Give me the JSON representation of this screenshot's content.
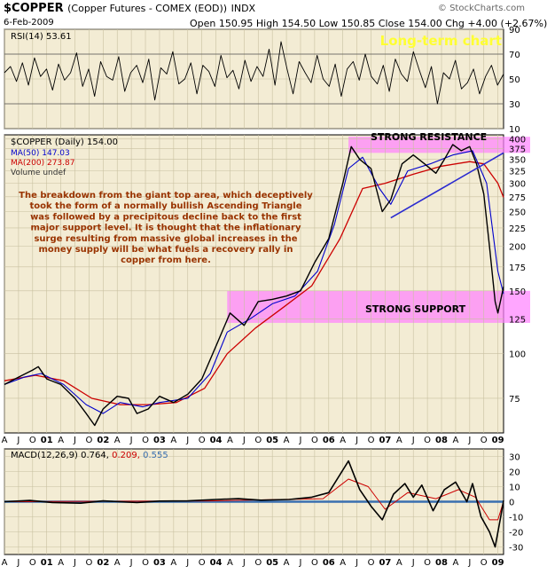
{
  "header": {
    "symbol": "$COPPER",
    "name": "(Copper Futures - COMEX (EOD))",
    "exchange": "INDX",
    "date": "6-Feb-2009",
    "quote": "Open 150.95  High 154.50  Low 150.85  Close 154.00  Chg +4.00 (+2.67%)",
    "watermark": "© StockCharts.com"
  },
  "colors": {
    "panel_bg": "#f3ecd4",
    "grid": "#c8c0a0",
    "price": "#000000",
    "ma50": "#0000cc",
    "ma200": "#cc0000",
    "zone": "#ff80ff",
    "annotation": "#993300",
    "title_badge": "#ffff33",
    "trendline": "#2a2ad0",
    "macd_hist": "#3a6fb0"
  },
  "chart_data": [
    {
      "type": "line",
      "panel": "rsi",
      "legend": "RSI(14) 53.61",
      "ylim": [
        10,
        90
      ],
      "yticks": [
        10,
        30,
        50,
        70,
        90
      ],
      "guides": [
        30,
        70
      ],
      "badge": "Long-term chart",
      "values": [
        55,
        60,
        48,
        63,
        45,
        67,
        52,
        58,
        41,
        62,
        49,
        55,
        71,
        44,
        58,
        36,
        64,
        52,
        49,
        68,
        40,
        55,
        61,
        47,
        66,
        33,
        59,
        54,
        72,
        46,
        50,
        63,
        38,
        61,
        56,
        44,
        69,
        51,
        57,
        42,
        65,
        48,
        60,
        52,
        74,
        45,
        80,
        58,
        38,
        64,
        55,
        47,
        69,
        50,
        44,
        62,
        36,
        58,
        64,
        49,
        70,
        52,
        46,
        61,
        40,
        66,
        54,
        48,
        72,
        57,
        43,
        60,
        30,
        55,
        50,
        65,
        42,
        47,
        58,
        38,
        52,
        61,
        45,
        54
      ]
    },
    {
      "type": "line",
      "panel": "price",
      "title": "$COPPER (Daily) 154.00",
      "legend": [
        "MA(50) 147.03",
        "MA(200) 273.87",
        "Volume undef"
      ],
      "scale": "log",
      "ylim": [
        60,
        410
      ],
      "yticks": [
        75,
        100,
        125,
        150,
        175,
        200,
        225,
        250,
        275,
        300,
        325,
        350,
        375,
        400
      ],
      "x_ticks": [
        "A",
        "J",
        "O",
        "01",
        "A",
        "J",
        "O",
        "02",
        "A",
        "J",
        "O",
        "03",
        "A",
        "J",
        "O",
        "04",
        "A",
        "J",
        "O",
        "05",
        "A",
        "J",
        "O",
        "06",
        "A",
        "J",
        "O",
        "07",
        "A",
        "J",
        "O",
        "08",
        "A",
        "J",
        "O",
        "09"
      ],
      "x_start_year": 2000.25,
      "x_end_year": 2009.1,
      "price_points": [
        [
          2000.25,
          82
        ],
        [
          2000.5,
          86
        ],
        [
          2000.75,
          90
        ],
        [
          2000.85,
          92
        ],
        [
          2001.0,
          85
        ],
        [
          2001.25,
          82
        ],
        [
          2001.5,
          75
        ],
        [
          2001.7,
          68
        ],
        [
          2001.85,
          63
        ],
        [
          2002.0,
          70
        ],
        [
          2002.25,
          76
        ],
        [
          2002.45,
          75
        ],
        [
          2002.6,
          68
        ],
        [
          2002.8,
          70
        ],
        [
          2003.0,
          76
        ],
        [
          2003.25,
          73
        ],
        [
          2003.5,
          77
        ],
        [
          2003.75,
          85
        ],
        [
          2004.0,
          105
        ],
        [
          2004.25,
          130
        ],
        [
          2004.5,
          120
        ],
        [
          2004.75,
          140
        ],
        [
          2005.0,
          142
        ],
        [
          2005.25,
          145
        ],
        [
          2005.5,
          150
        ],
        [
          2005.75,
          180
        ],
        [
          2006.0,
          210
        ],
        [
          2006.25,
          300
        ],
        [
          2006.4,
          380
        ],
        [
          2006.55,
          350
        ],
        [
          2006.75,
          330
        ],
        [
          2006.95,
          250
        ],
        [
          2007.1,
          270
        ],
        [
          2007.3,
          340
        ],
        [
          2007.5,
          360
        ],
        [
          2007.7,
          340
        ],
        [
          2007.9,
          320
        ],
        [
          2008.05,
          350
        ],
        [
          2008.2,
          385
        ],
        [
          2008.35,
          370
        ],
        [
          2008.5,
          380
        ],
        [
          2008.62,
          340
        ],
        [
          2008.75,
          280
        ],
        [
          2008.85,
          200
        ],
        [
          2008.95,
          140
        ],
        [
          2009.0,
          130
        ],
        [
          2009.1,
          154
        ]
      ],
      "ma50_points": [
        [
          2000.25,
          82
        ],
        [
          2000.6,
          86
        ],
        [
          2000.9,
          88
        ],
        [
          2001.3,
          82
        ],
        [
          2001.7,
          72
        ],
        [
          2002.0,
          68
        ],
        [
          2002.3,
          73
        ],
        [
          2002.7,
          71
        ],
        [
          2003.0,
          73
        ],
        [
          2003.5,
          75
        ],
        [
          2003.9,
          88
        ],
        [
          2004.2,
          115
        ],
        [
          2004.6,
          125
        ],
        [
          2005.0,
          138
        ],
        [
          2005.4,
          145
        ],
        [
          2005.8,
          170
        ],
        [
          2006.1,
          230
        ],
        [
          2006.35,
          330
        ],
        [
          2006.6,
          355
        ],
        [
          2006.9,
          290
        ],
        [
          2007.1,
          262
        ],
        [
          2007.4,
          325
        ],
        [
          2007.8,
          340
        ],
        [
          2008.2,
          360
        ],
        [
          2008.55,
          370
        ],
        [
          2008.8,
          300
        ],
        [
          2009.0,
          170
        ],
        [
          2009.1,
          147
        ]
      ],
      "ma200_points": [
        [
          2000.25,
          84
        ],
        [
          2000.8,
          87
        ],
        [
          2001.3,
          84
        ],
        [
          2001.8,
          75
        ],
        [
          2002.3,
          72
        ],
        [
          2002.8,
          72
        ],
        [
          2003.3,
          73
        ],
        [
          2003.8,
          80
        ],
        [
          2004.2,
          100
        ],
        [
          2004.7,
          118
        ],
        [
          2005.2,
          135
        ],
        [
          2005.7,
          155
        ],
        [
          2006.2,
          210
        ],
        [
          2006.6,
          290
        ],
        [
          2007.0,
          300
        ],
        [
          2007.5,
          318
        ],
        [
          2008.0,
          335
        ],
        [
          2008.5,
          345
        ],
        [
          2008.75,
          340
        ],
        [
          2009.0,
          300
        ],
        [
          2009.1,
          274
        ]
      ],
      "resistance_zone": [
        365,
        405
      ],
      "resistance_zone_start": 2006.35,
      "support_zone": [
        122,
        150
      ],
      "support_zone_start": 2004.2,
      "trendline": [
        [
          2007.1,
          240
        ],
        [
          2009.1,
          365
        ]
      ],
      "annotations": {
        "resistance": "STRONG RESISTANCE",
        "support": "STRONG SUPPORT",
        "commentary": [
          "The breakdown from the giant top area, which deceptively",
          "took the form of a normally bullish Ascending Triangle",
          "was followed by a precipitous decline back to the first",
          "major support level. It is thought that the inflationary",
          "surge resulting from massive global increases in the",
          "money supply will be what fuels a recovery rally in",
          "copper from here."
        ]
      }
    },
    {
      "type": "line",
      "panel": "macd",
      "legend": [
        "MACD(12,26,9)",
        "0.764,",
        "0.209,",
        "0.555"
      ],
      "ylim": [
        -35,
        35
      ],
      "yticks": [
        -30,
        -20,
        -10,
        0,
        10,
        20,
        30
      ],
      "x_ticks": [
        "A",
        "J",
        "O",
        "01",
        "A",
        "J",
        "O",
        "02",
        "A",
        "J",
        "O",
        "03",
        "A",
        "J",
        "O",
        "04",
        "A",
        "J",
        "O",
        "05",
        "A",
        "J",
        "O",
        "06",
        "A",
        "J",
        "O",
        "07",
        "A",
        "J",
        "O",
        "08",
        "A",
        "J",
        "O",
        "09"
      ],
      "macd_points": [
        [
          2000.25,
          0
        ],
        [
          2000.7,
          0.8
        ],
        [
          2001.1,
          -0.5
        ],
        [
          2001.6,
          -1
        ],
        [
          2002.0,
          0.5
        ],
        [
          2002.6,
          -0.6
        ],
        [
          2003.0,
          0.4
        ],
        [
          2003.5,
          0.5
        ],
        [
          2004.0,
          1.5
        ],
        [
          2004.4,
          2
        ],
        [
          2004.8,
          1
        ],
        [
          2005.3,
          1.5
        ],
        [
          2005.7,
          3
        ],
        [
          2006.0,
          6
        ],
        [
          2006.35,
          27
        ],
        [
          2006.55,
          8
        ],
        [
          2006.75,
          -3
        ],
        [
          2006.95,
          -12
        ],
        [
          2007.15,
          5
        ],
        [
          2007.35,
          12
        ],
        [
          2007.5,
          3
        ],
        [
          2007.65,
          11
        ],
        [
          2007.85,
          -6
        ],
        [
          2008.05,
          8
        ],
        [
          2008.25,
          13
        ],
        [
          2008.45,
          0
        ],
        [
          2008.55,
          12
        ],
        [
          2008.7,
          -10
        ],
        [
          2008.85,
          -20
        ],
        [
          2008.95,
          -30
        ],
        [
          2009.05,
          -10
        ],
        [
          2009.1,
          0.8
        ]
      ],
      "signal_points": [
        [
          2000.25,
          0
        ],
        [
          2003.9,
          0.5
        ],
        [
          2005.9,
          2
        ],
        [
          2006.35,
          15
        ],
        [
          2006.7,
          10
        ],
        [
          2007.0,
          -5
        ],
        [
          2007.4,
          6
        ],
        [
          2007.9,
          2
        ],
        [
          2008.3,
          8
        ],
        [
          2008.6,
          3
        ],
        [
          2008.85,
          -12
        ],
        [
          2009.0,
          -12
        ],
        [
          2009.1,
          0.2
        ]
      ]
    }
  ]
}
